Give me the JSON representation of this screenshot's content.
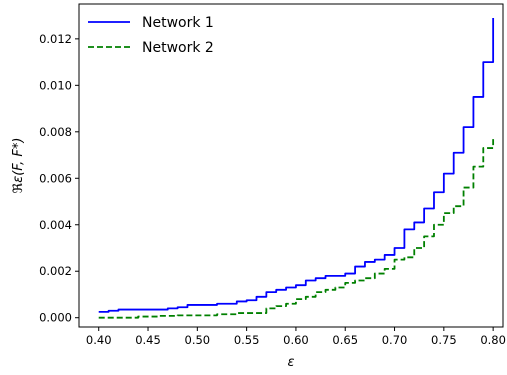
{
  "chart_data": {
    "type": "line",
    "title": "",
    "xlabel": "ε",
    "ylabel": "ℜε(F, F*)",
    "xlim": [
      0.38,
      0.81
    ],
    "ylim": [
      -0.0004,
      0.0135
    ],
    "xticks": [
      0.4,
      0.45,
      0.5,
      0.55,
      0.6,
      0.65,
      0.7,
      0.75,
      0.8
    ],
    "xtick_labels": [
      "0.40",
      "0.45",
      "0.50",
      "0.55",
      "0.60",
      "0.65",
      "0.70",
      "0.75",
      "0.80"
    ],
    "yticks": [
      0.0,
      0.002,
      0.004,
      0.006,
      0.008,
      0.01,
      0.012
    ],
    "ytick_labels": [
      "0.000",
      "0.002",
      "0.004",
      "0.006",
      "0.008",
      "0.010",
      "0.012"
    ],
    "grid": false,
    "legend_position": "top-left",
    "series": [
      {
        "name": "Network 1",
        "color": "#0000ff",
        "style": "solid",
        "x": [
          0.4,
          0.41,
          0.42,
          0.45,
          0.47,
          0.48,
          0.49,
          0.5,
          0.52,
          0.54,
          0.55,
          0.56,
          0.57,
          0.58,
          0.59,
          0.6,
          0.61,
          0.62,
          0.63,
          0.64,
          0.65,
          0.66,
          0.67,
          0.68,
          0.69,
          0.7,
          0.71,
          0.72,
          0.73,
          0.74,
          0.75,
          0.76,
          0.77,
          0.78,
          0.79,
          0.8
        ],
        "y": [
          0.00025,
          0.0003,
          0.00035,
          0.00035,
          0.0004,
          0.00045,
          0.00055,
          0.00055,
          0.0006,
          0.0007,
          0.00075,
          0.0009,
          0.0011,
          0.0012,
          0.0013,
          0.0014,
          0.0016,
          0.0017,
          0.0018,
          0.0018,
          0.0019,
          0.0022,
          0.0024,
          0.0025,
          0.0027,
          0.003,
          0.0038,
          0.0041,
          0.0047,
          0.0054,
          0.0062,
          0.0071,
          0.0082,
          0.0095,
          0.011,
          0.0129
        ]
      },
      {
        "name": "Network 2",
        "color": "#008000",
        "style": "dashed",
        "x": [
          0.4,
          0.42,
          0.44,
          0.46,
          0.48,
          0.5,
          0.52,
          0.54,
          0.56,
          0.57,
          0.58,
          0.59,
          0.6,
          0.61,
          0.62,
          0.63,
          0.64,
          0.65,
          0.66,
          0.67,
          0.68,
          0.69,
          0.7,
          0.71,
          0.72,
          0.73,
          0.74,
          0.75,
          0.76,
          0.77,
          0.78,
          0.79,
          0.8
        ],
        "y": [
          0.0,
          0.0,
          5e-05,
          8e-05,
          0.0001,
          0.0001,
          0.00015,
          0.0002,
          0.0002,
          0.0004,
          0.0005,
          0.0006,
          0.0008,
          0.0009,
          0.0011,
          0.0012,
          0.0013,
          0.0015,
          0.0016,
          0.0017,
          0.0019,
          0.0021,
          0.0025,
          0.0026,
          0.003,
          0.0035,
          0.004,
          0.0045,
          0.0048,
          0.0056,
          0.0065,
          0.0073,
          0.0078
        ]
      }
    ]
  }
}
